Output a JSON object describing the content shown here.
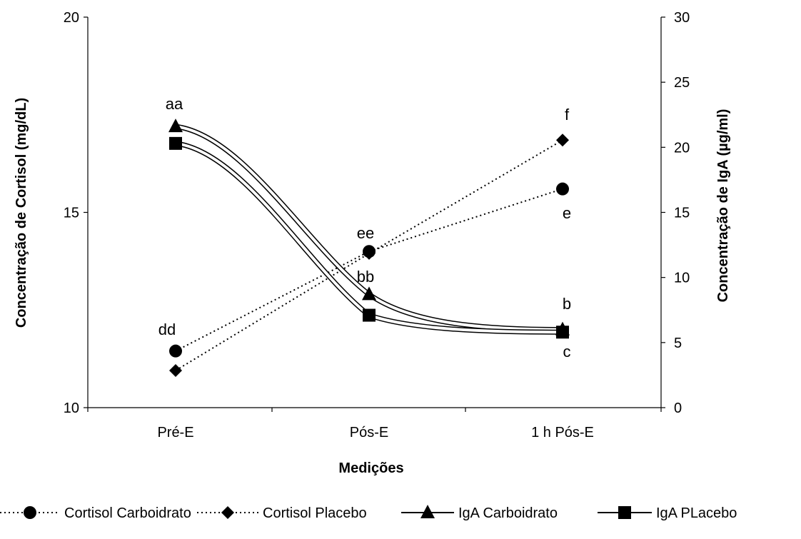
{
  "chart_data": {
    "type": "line",
    "title": "",
    "xlabel": "Medições",
    "ylabel_left": "Concentração de Cortisol (mg/dL)",
    "ylabel_right": "Concentração de IgA (µg/ml)",
    "categories": [
      "Pré-E",
      "Pós-E",
      "1 h Pós-E"
    ],
    "ylim_left": [
      10,
      20
    ],
    "yticks_left": [
      "10",
      "15",
      "20"
    ],
    "ylim_right": [
      0,
      30
    ],
    "yticks_right": [
      "0",
      "5",
      "10",
      "15",
      "20",
      "25",
      "30"
    ],
    "grid": false,
    "legend_position": "bottom",
    "series": [
      {
        "name": "Cortisol Carboidrato",
        "axis": "left",
        "values": [
          11.45,
          14.0,
          15.6
        ],
        "marker": "circle",
        "line": "dotted"
      },
      {
        "name": "Cortisol Placebo",
        "axis": "left",
        "values": [
          10.95,
          13.95,
          16.85
        ],
        "marker": "diamond",
        "line": "dotted"
      },
      {
        "name": "IgA Carboidrato",
        "axis": "right",
        "values": [
          21.6,
          8.7,
          6.0
        ],
        "marker": "triangle",
        "line": "solid"
      },
      {
        "name": "IgA PLacebo",
        "axis": "right",
        "values": [
          20.3,
          7.1,
          5.8
        ],
        "marker": "square",
        "line": "solid"
      }
    ],
    "annotations": [
      "aa",
      "dd",
      "ee",
      "bb",
      "f",
      "e",
      "b",
      "c"
    ]
  }
}
